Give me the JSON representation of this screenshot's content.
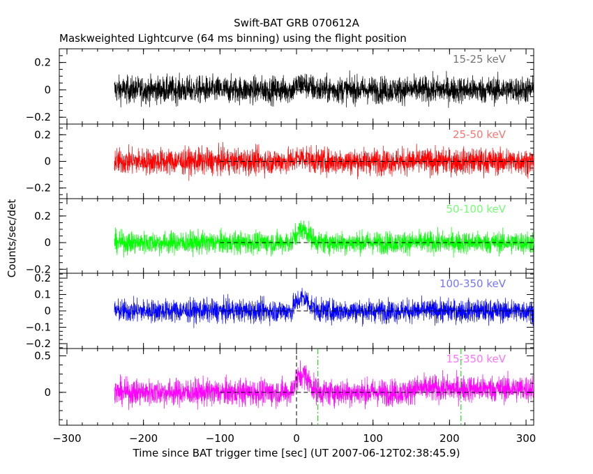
{
  "chart_data": {
    "type": "line",
    "title": "Swift-BAT GRB 070612A",
    "subtitle": "Maskweighted Lightcurve (64 ms binning) using the flight position",
    "xlabel": "Time since BAT trigger time [sec] (UT 2007-06-12T02:38:45.9)",
    "ylabel": "Counts/sec/det",
    "xlim": [
      -310,
      310
    ],
    "xticks": [
      -300,
      -200,
      -100,
      0,
      100,
      200,
      300
    ],
    "reference_lines": [
      {
        "style": "dashed",
        "y": 0,
        "x_range": [
          -100,
          310
        ],
        "color": "#000000"
      },
      {
        "style": "dashed",
        "x": 0,
        "panel": 5,
        "color": "#000000"
      },
      {
        "style": "dash-dot",
        "x": 28,
        "panel": 5,
        "color": "#00cc00"
      },
      {
        "style": "dash-dot",
        "x": 215,
        "panel": 5,
        "color": "#00cc00"
      }
    ],
    "panels": [
      {
        "label": "15-25 keV",
        "color": "#000000",
        "ylim": [
          -0.25,
          0.3
        ],
        "yticks": [
          -0.2,
          0,
          0.2
        ],
        "ytick_labels": [
          "−0.2",
          "0",
          "0.2"
        ],
        "noise_sigma": 0.07,
        "data_range": [
          -238,
          310
        ],
        "peak": 0.04
      },
      {
        "label": "25-50 keV",
        "color": "#ff0000",
        "ylim": [
          -0.28,
          0.28
        ],
        "yticks": [
          -0.2,
          0,
          0.2
        ],
        "ytick_labels": [
          "−0.2",
          "0",
          "0.2"
        ],
        "noise_sigma": 0.07,
        "data_range": [
          -238,
          310
        ],
        "peak": 0.03
      },
      {
        "label": "50-100 keV",
        "color": "#00ff00",
        "ylim": [
          -0.23,
          0.33
        ],
        "yticks": [
          -0.2,
          0,
          0.2
        ],
        "ytick_labels": [
          "−0.2",
          "0",
          "0.2"
        ],
        "noise_sigma": 0.06,
        "data_range": [
          -238,
          310
        ],
        "peak": 0.1
      },
      {
        "label": "100-350 keV",
        "color": "#0000ff",
        "ylim": [
          -0.23,
          0.23
        ],
        "yticks": [
          -0.2,
          -0.1,
          0,
          0.1,
          0.2
        ],
        "ytick_labels": [
          "−0.2",
          "−0.1",
          "0",
          "0.1",
          "0.2"
        ],
        "noise_sigma": 0.05,
        "data_range": [
          -238,
          310
        ],
        "peak": 0.08
      },
      {
        "label": "15-350 keV",
        "color": "#ff00ff",
        "ylim": [
          -0.45,
          0.6
        ],
        "yticks": [
          0,
          0.5
        ],
        "ytick_labels": [
          "0",
          "0.5"
        ],
        "noise_sigma": 0.13,
        "data_range": [
          -238,
          310
        ],
        "peak": 0.25
      }
    ]
  }
}
